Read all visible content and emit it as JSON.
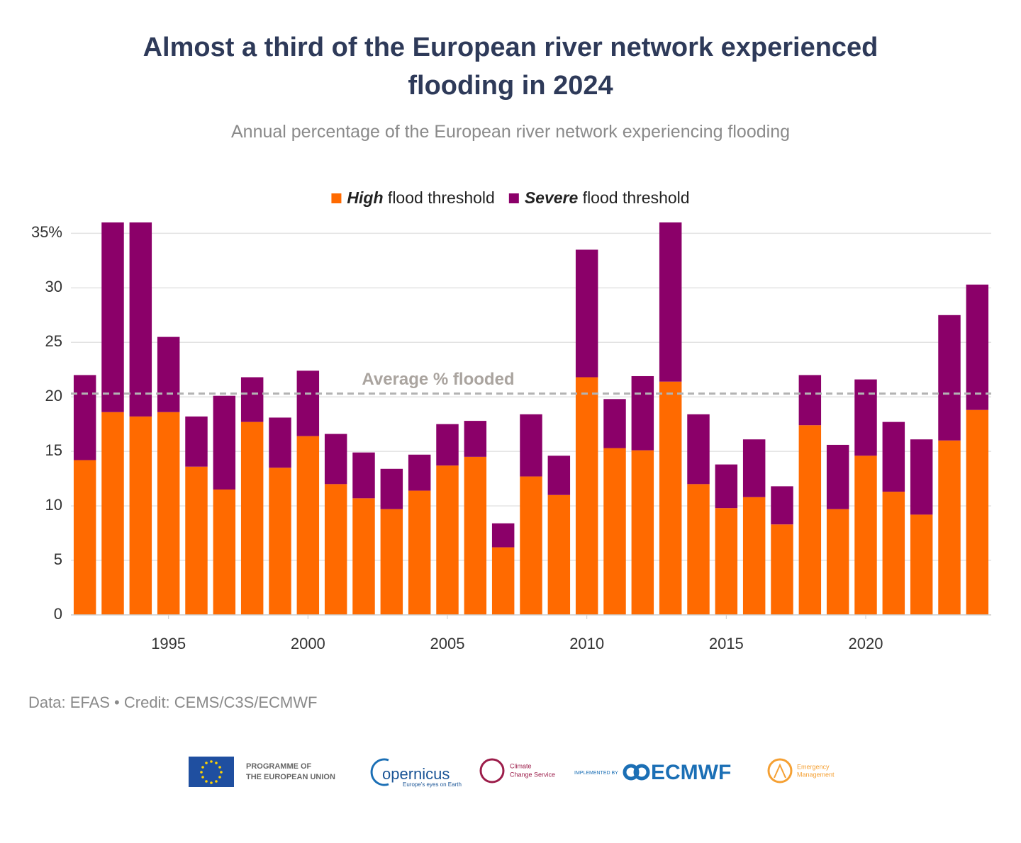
{
  "chart_data": {
    "type": "stacked_bar",
    "title": "Almost a third of the European river network experienced flooding in 2024",
    "subtitle": "Annual percentage of the European river network experiencing flooding",
    "x": [
      1992,
      1993,
      1994,
      1995,
      1996,
      1997,
      1998,
      1999,
      2000,
      2001,
      2002,
      2003,
      2004,
      2005,
      2006,
      2007,
      2008,
      2009,
      2010,
      2011,
      2012,
      2013,
      2014,
      2015,
      2016,
      2017,
      2018,
      2019,
      2020,
      2021,
      2022,
      2023,
      2024
    ],
    "series": [
      {
        "name": "High flood threshold",
        "color": "#ff6a00",
        "values": [
          14.2,
          18.6,
          18.2,
          18.6,
          13.6,
          11.5,
          17.7,
          13.5,
          16.4,
          12.0,
          10.7,
          9.7,
          11.4,
          13.7,
          14.5,
          6.2,
          12.7,
          11.0,
          21.8,
          15.3,
          15.1,
          21.4,
          12.0,
          9.8,
          10.8,
          8.3,
          17.4,
          9.7,
          14.6,
          11.3,
          9.2,
          16.0,
          18.8
        ]
      },
      {
        "name": "Severe flood threshold",
        "color": "#8b0069",
        "values": [
          7.8,
          17.4,
          17.8,
          6.9,
          4.6,
          8.6,
          4.1,
          4.6,
          6.0,
          4.6,
          4.2,
          3.7,
          3.3,
          3.8,
          3.3,
          2.2,
          5.7,
          3.6,
          11.7,
          4.5,
          6.8,
          14.6,
          6.4,
          4.0,
          5.3,
          3.5,
          4.6,
          5.9,
          7.0,
          6.4,
          6.9,
          11.5,
          11.5
        ]
      }
    ],
    "xlim": [
      1991.5,
      2024.5
    ],
    "xticks": [
      1995,
      2000,
      2005,
      2010,
      2015,
      2020
    ],
    "ylim": [
      0,
      36
    ],
    "yticks": [
      0,
      5,
      10,
      15,
      20,
      25,
      30,
      {
        "value": 35,
        "label": "35%"
      }
    ],
    "grid": true,
    "average": 20.3,
    "average_label": "Average % flooded",
    "source": "Data: EFAS • Credit: CEMS/C3S/ECMWF"
  },
  "logos": {
    "eu_line1": "PROGRAMME OF",
    "eu_line2": "THE EUROPEAN UNION",
    "copernicus": "opernicus",
    "copernicus_tagline": "Europe's eyes on Earth",
    "c3s_line1": "Climate",
    "c3s_line2": "Change Service",
    "implemented": "IMPLEMENTED BY",
    "ecmwf": "ECMWF",
    "cems_line1": "Emergency",
    "cems_line2": "Management"
  }
}
